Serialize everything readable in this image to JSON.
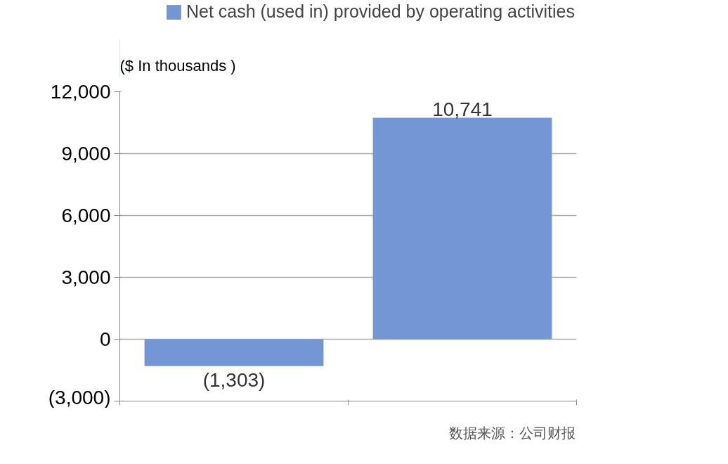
{
  "chart_data": {
    "type": "bar",
    "ylabel": "($ In thousands )",
    "categories": [
      null,
      null
    ],
    "series": [
      {
        "name": "Net cash (used in) provided by operating activities",
        "color": "#7297d4",
        "values": [
          -1303,
          10741
        ],
        "value_labels": [
          "(1,303)",
          "10,741"
        ]
      }
    ],
    "ylim": [
      -3000,
      12000
    ],
    "yticks": [
      {
        "value": -3000,
        "label": "(3,000)"
      },
      0,
      {
        "value": 3000,
        "label": "3,000"
      },
      {
        "value": 6000,
        "label": "6,000"
      },
      {
        "value": 9000,
        "label": "9,000"
      },
      {
        "value": 12000,
        "label": "12,000"
      }
    ],
    "grid": "y",
    "legend": "top",
    "tick_labels": "y",
    "annotations": [
      "数据来源：公司财报"
    ]
  }
}
